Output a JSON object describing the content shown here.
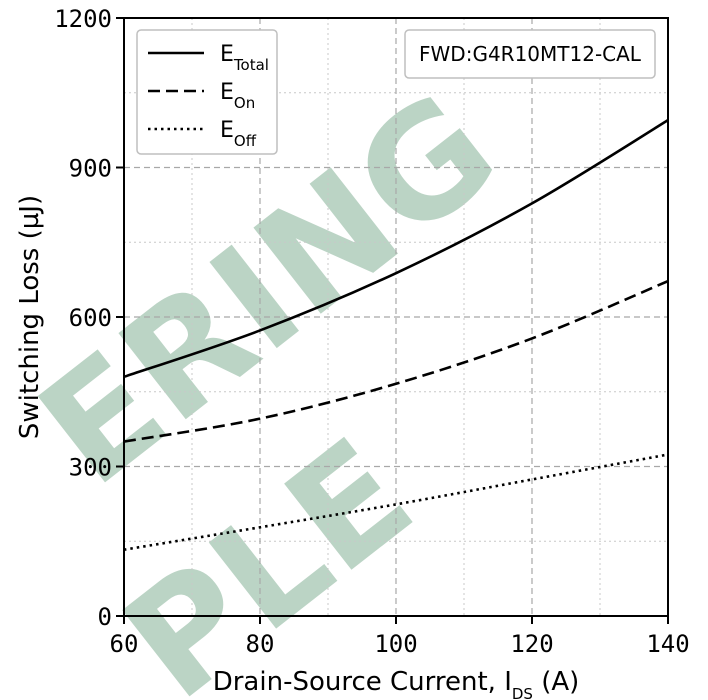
{
  "chart_data": {
    "type": "line",
    "xlabel_main": "Drain-Source Current, I",
    "xlabel_sub": "DS",
    "xlabel_unit": " (A)",
    "ylabel": "Switching Loss (µJ)",
    "xlim": [
      60,
      140
    ],
    "ylim": [
      0,
      1200
    ],
    "xticks": [
      60,
      80,
      100,
      120,
      140
    ],
    "yticks": [
      0,
      300,
      600,
      900,
      1200
    ],
    "x_minor_grid": [
      70,
      90,
      110,
      130
    ],
    "y_minor_grid": [
      150,
      450,
      750,
      1050
    ],
    "grid": true,
    "legend_position": "top-left",
    "annotation": "FWD:G4R10MT12-CAL",
    "watermark_lines": [
      "ERING",
      "PLE"
    ],
    "series": [
      {
        "name_main": "E",
        "name_sub": "Total",
        "style": "solid",
        "x": [
          60,
          80,
          100,
          120,
          140
        ],
        "y": [
          480,
          573,
          688,
          828,
          995
        ]
      },
      {
        "name_main": "E",
        "name_sub": "On",
        "style": "dashed",
        "x": [
          60,
          80,
          100,
          120,
          140
        ],
        "y": [
          350,
          396,
          466,
          557,
          672
        ]
      },
      {
        "name_main": "E",
        "name_sub": "Off",
        "style": "dotted",
        "x": [
          60,
          80,
          100,
          120,
          140
        ],
        "y": [
          133,
          178,
          224,
          274,
          324
        ]
      }
    ]
  }
}
